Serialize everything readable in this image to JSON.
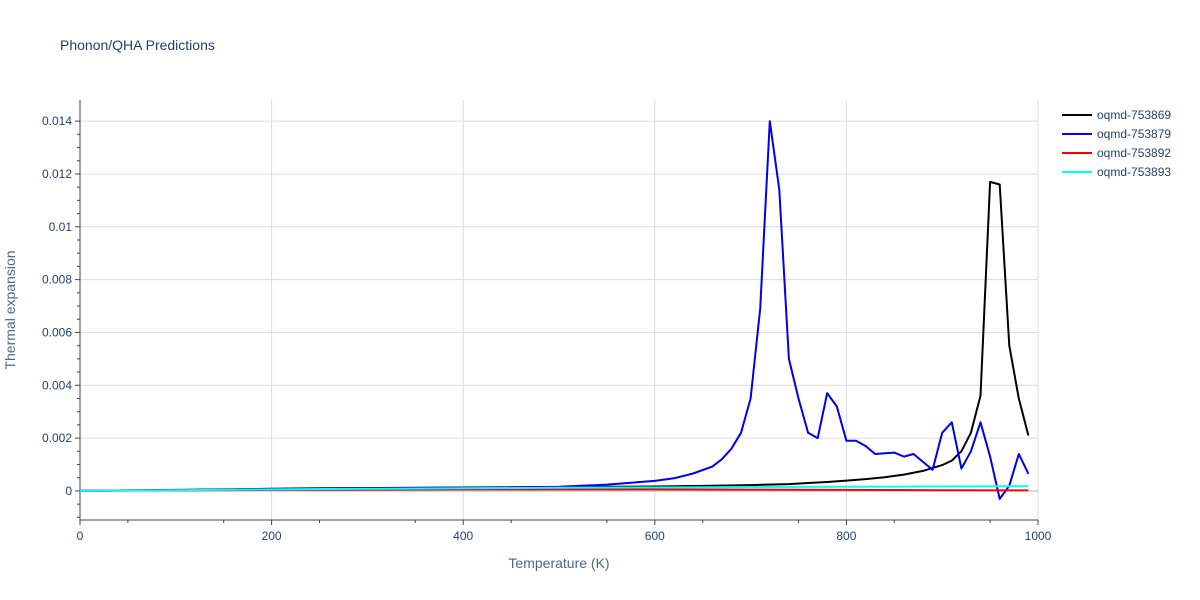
{
  "chart_data": {
    "type": "line",
    "title": "Phonon/QHA Predictions",
    "xlabel": "Temperature (K)",
    "ylabel": "Thermal expansion",
    "xlim": [
      0,
      1000
    ],
    "ylim": [
      -0.0011,
      0.0148
    ],
    "x_ticks": [
      0,
      200,
      400,
      600,
      800,
      1000
    ],
    "x_tick_labels": [
      "0",
      "200",
      "400",
      "600",
      "800",
      "1000"
    ],
    "y_ticks": [
      0,
      0.002,
      0.004,
      0.006,
      0.008,
      0.01,
      0.012,
      0.014
    ],
    "y_tick_labels": [
      "0",
      "0.002",
      "0.004",
      "0.006",
      "0.008",
      "0.01",
      "0.012",
      "0.014"
    ],
    "grid": true,
    "legend_position": "top-right",
    "series": [
      {
        "name": "oqmd-753869",
        "color": "#000000",
        "x": [
          0,
          50,
          100,
          150,
          200,
          250,
          300,
          350,
          400,
          450,
          500,
          550,
          600,
          650,
          700,
          740,
          760,
          780,
          800,
          820,
          840,
          860,
          880,
          900,
          910,
          920,
          930,
          940,
          950,
          960,
          970,
          980,
          990
        ],
        "y": [
          0,
          2e-05,
          4e-05,
          6e-05,
          8e-05,
          0.0001,
          0.00011,
          0.00012,
          0.00013,
          0.00014,
          0.00015,
          0.00016,
          0.00017,
          0.00019,
          0.00022,
          0.00026,
          0.0003,
          0.00034,
          0.00039,
          0.00045,
          0.00052,
          0.00062,
          0.00076,
          0.00098,
          0.00115,
          0.0015,
          0.0022,
          0.0036,
          0.0117,
          0.0116,
          0.0055,
          0.0035,
          0.0021
        ]
      },
      {
        "name": "oqmd-753879",
        "color": "#0000ee",
        "x": [
          0,
          50,
          100,
          150,
          200,
          250,
          300,
          350,
          400,
          450,
          500,
          550,
          600,
          620,
          640,
          660,
          670,
          680,
          690,
          700,
          710,
          720,
          730,
          740,
          750,
          760,
          770,
          780,
          790,
          800,
          810,
          820,
          830,
          850,
          860,
          870,
          880,
          890,
          900,
          910,
          920,
          930,
          940,
          950,
          960,
          970,
          980,
          990
        ],
        "y": [
          0,
          2e-05,
          3e-05,
          5e-05,
          7e-05,
          9e-05,
          0.0001,
          0.00011,
          0.00012,
          0.00013,
          0.00016,
          0.00024,
          0.00038,
          0.00048,
          0.00066,
          0.00092,
          0.0012,
          0.0016,
          0.0022,
          0.0035,
          0.0069,
          0.014,
          0.0114,
          0.005,
          0.0035,
          0.0022,
          0.002,
          0.0037,
          0.0032,
          0.0019,
          0.0019,
          0.0017,
          0.0014,
          0.00145,
          0.0013,
          0.0014,
          0.0011,
          0.0008,
          0.0022,
          0.0026,
          0.00085,
          0.0015,
          0.0026,
          0.0013,
          -0.0003,
          0.0002,
          0.0014,
          0.00065
        ]
      },
      {
        "name": "oqmd-753892",
        "color": "#ff0000",
        "x": [
          0,
          100,
          200,
          300,
          400,
          500,
          600,
          700,
          800,
          900,
          990
        ],
        "y": [
          0,
          2e-05,
          4e-05,
          5e-05,
          6e-05,
          6e-05,
          6e-05,
          5e-05,
          4e-05,
          3e-05,
          2e-05
        ]
      },
      {
        "name": "oqmd-753893",
        "color": "#00ffff",
        "x": [
          0,
          100,
          200,
          300,
          400,
          500,
          600,
          700,
          800,
          900,
          990
        ],
        "y": [
          0,
          3e-05,
          6e-05,
          8e-05,
          0.0001,
          0.00012,
          0.00013,
          0.00015,
          0.00016,
          0.00017,
          0.00018
        ]
      }
    ]
  }
}
